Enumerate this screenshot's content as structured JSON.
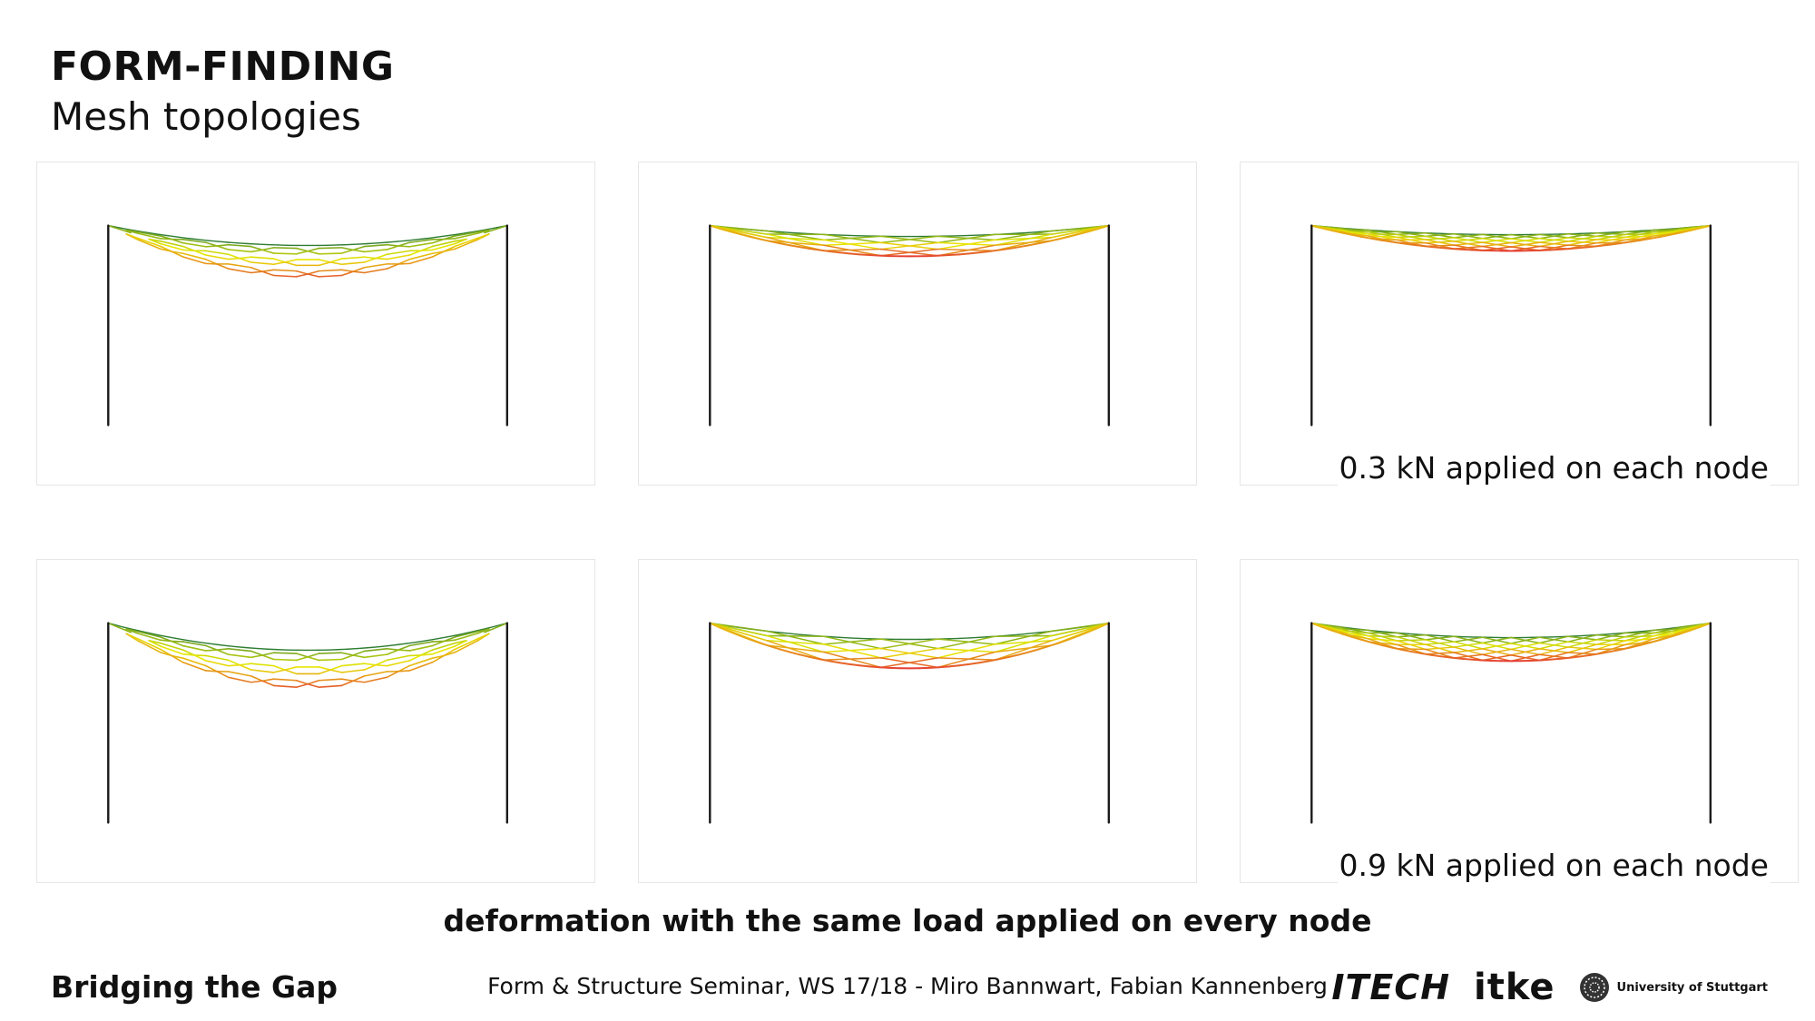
{
  "header": {
    "title": "FORM-FINDING",
    "subtitle": "Mesh topologies"
  },
  "panels": [
    {
      "row": 1,
      "col": 1,
      "topology": "hexagonal",
      "load_kN": 0.3,
      "label": ""
    },
    {
      "row": 1,
      "col": 2,
      "topology": "diamond",
      "load_kN": 0.3,
      "label": ""
    },
    {
      "row": 1,
      "col": 3,
      "topology": "dense",
      "load_kN": 0.3,
      "label": "0.3 kN applied on each node"
    },
    {
      "row": 2,
      "col": 1,
      "topology": "hexagonal",
      "load_kN": 0.9,
      "label": ""
    },
    {
      "row": 2,
      "col": 2,
      "topology": "diamond",
      "load_kN": 0.9,
      "label": ""
    },
    {
      "row": 2,
      "col": 3,
      "topology": "dense",
      "load_kN": 0.9,
      "label": "0.9 kN applied on each node"
    }
  ],
  "caption": "deformation with the same load applied on every node",
  "footer": {
    "project": "Bridging the Gap",
    "credits": "Form & Structure Seminar, WS 17/18 - Miro Bannwart, Fabian Kannenberg",
    "logos": {
      "itech": "ITECH",
      "itke": "itke",
      "university": "University of Stuttgart"
    }
  },
  "colors": {
    "post": "#1a1a1a",
    "edge_low_stress": "#2e7d32",
    "edge_mid_stress": "#e8e800",
    "edge_high_stress": "#e53935"
  }
}
